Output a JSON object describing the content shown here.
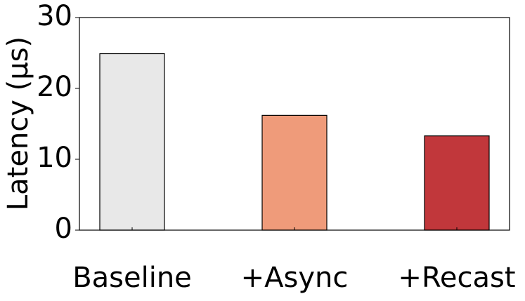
{
  "chart_data": {
    "type": "bar",
    "y_label": "Latency (μs)",
    "categories": [
      "Baseline",
      "+Async",
      "+Recast"
    ],
    "values": [
      24.9,
      16.2,
      13.3
    ],
    "colors": [
      "#e8e8e8",
      "#ef9b7a",
      "#c1373b"
    ],
    "ylim": [
      0,
      30
    ],
    "yticks": [
      0,
      10,
      20,
      30
    ],
    "grid": false
  }
}
